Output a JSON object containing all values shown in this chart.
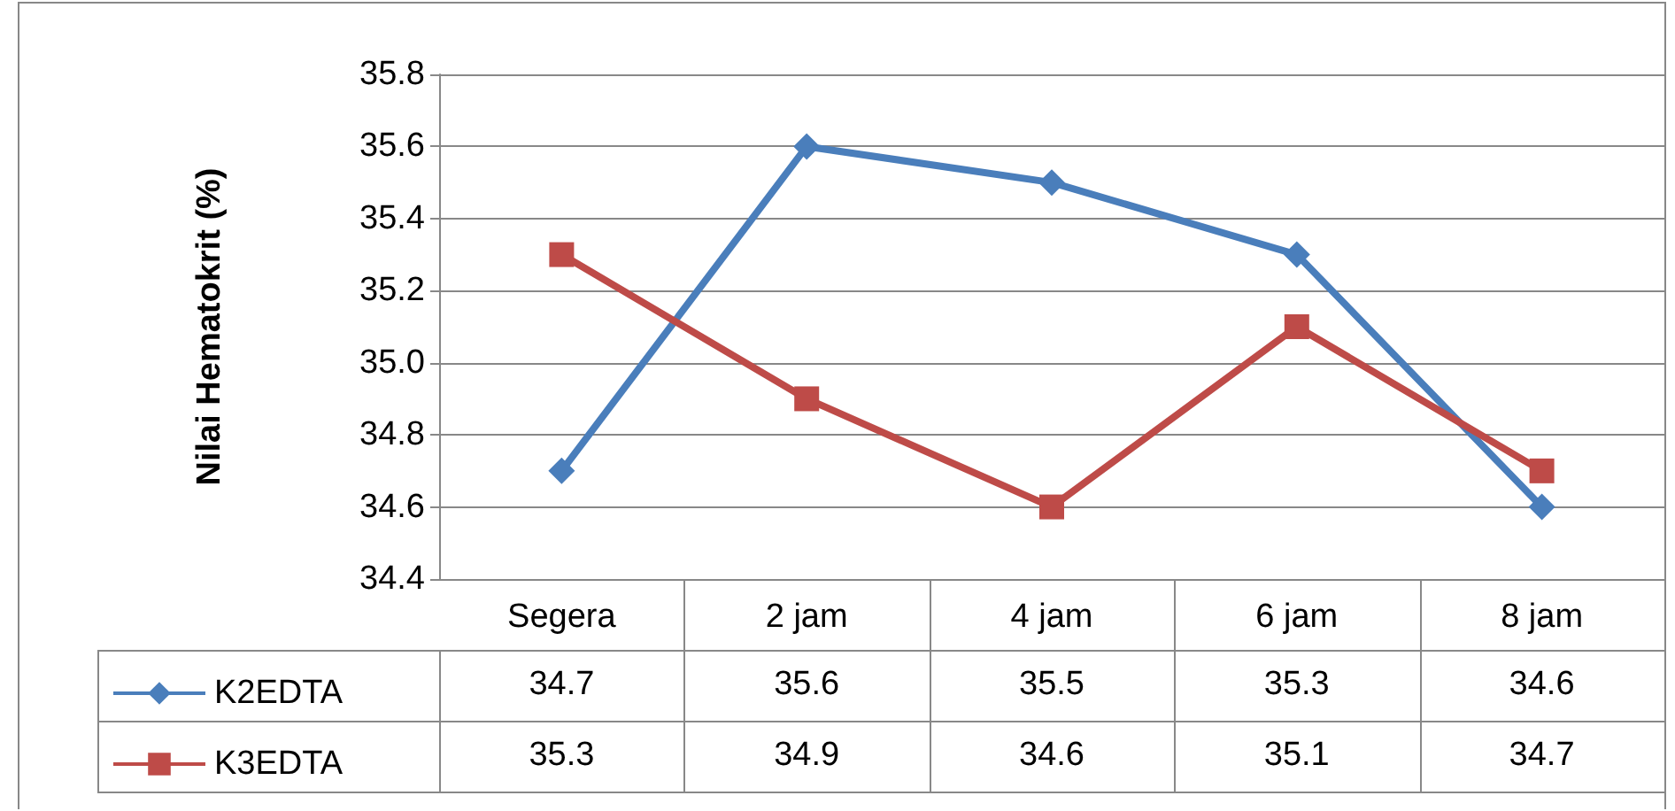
{
  "chart_data": {
    "type": "line",
    "ylabel": "Nilai Hematokrit (%)",
    "categories": [
      "Segera",
      "2 jam",
      "4 jam",
      "6 jam",
      "8 jam"
    ],
    "series": [
      {
        "name": "K2EDTA",
        "color": "#4a7ebb",
        "marker": "diamond",
        "values": [
          34.7,
          35.6,
          35.5,
          35.3,
          34.6
        ]
      },
      {
        "name": "K3EDTA",
        "color": "#be4b48",
        "marker": "square",
        "values": [
          35.3,
          34.9,
          34.6,
          35.1,
          34.7
        ]
      }
    ],
    "ylim": [
      34.4,
      35.8
    ],
    "yticks": [
      {
        "value": 34.4,
        "label": "34.4"
      },
      {
        "value": 34.6,
        "label": "34.6"
      },
      {
        "value": 34.8,
        "label": "34.8"
      },
      {
        "value": 35,
        "label": "35.0"
      },
      {
        "value": 35.2,
        "label": "35.2"
      },
      {
        "value": 35.4,
        "label": "35.4"
      },
      {
        "value": 35.6,
        "label": "35.6"
      },
      {
        "value": 35.8,
        "label": "35.8"
      }
    ],
    "grid": "y",
    "legend": "bottom left",
    "data_labels": true,
    "line_style": "solid"
  }
}
